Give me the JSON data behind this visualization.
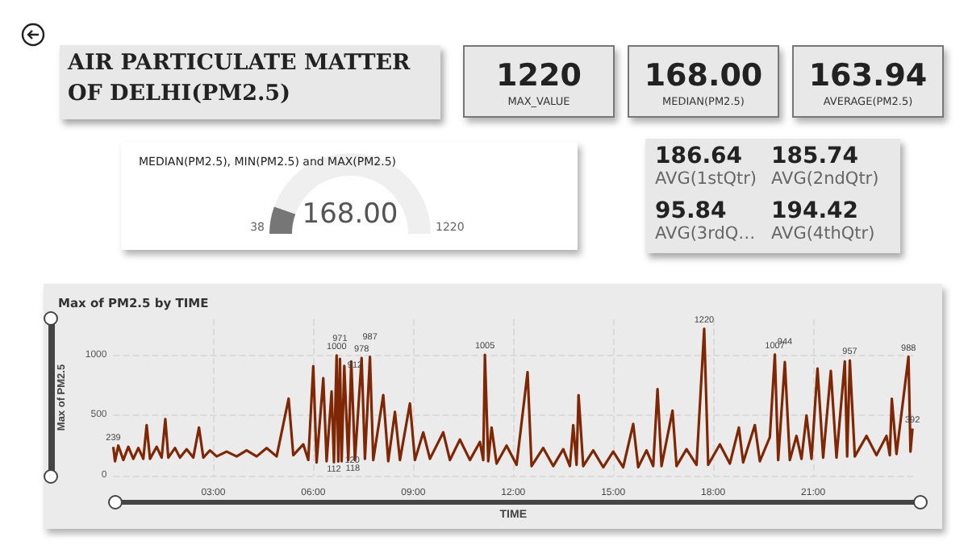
{
  "chart_data": [
    {
      "type": "other",
      "title": "AIR PARTICULATE MATTER OF DELHI(PM2.5)",
      "categories": [
        "MAX_VALUE",
        "MEDIAN(PM2.5)",
        "AVERAGE(PM2.5)"
      ],
      "values": [
        1220,
        168,
        163.94
      ],
      "value_labels": [
        "1220",
        "168.00",
        "163.94"
      ]
    },
    {
      "type": "donut",
      "title": "MEDIAN(PM2.5), MIN(PM2.5) and MAX(PM2.5)",
      "categories": [
        null,
        null
      ],
      "values": [
        11,
        89
      ],
      "colors": [
        "#767676",
        "#efefef"
      ],
      "annotations": [
        "168.00",
        "38",
        "1220"
      ]
    },
    {
      "type": "other",
      "categories": [
        "AVG(1stQtr)",
        "AVG(2ndQtr)",
        "AVG(3rdQ…",
        "AVG(4thQtr)"
      ],
      "values": [
        186.64,
        185.74,
        95.84,
        194.42
      ],
      "value_labels": [
        "186.64",
        "185.74",
        "95.84",
        "194.42"
      ]
    },
    {
      "type": "line",
      "title": "Max of PM2.5 by TIME",
      "xlabel": "TIME",
      "ylabel": "Max of PM2.5",
      "color": "#7f2704",
      "grid": true,
      "xlim": [
        0,
        24
      ],
      "xticks": [
        {
          "value": 3,
          "label": "03:00"
        },
        {
          "value": 6,
          "label": "06:00"
        },
        {
          "value": 9,
          "label": "09:00"
        },
        {
          "value": 12,
          "label": "12:00"
        },
        {
          "value": 15,
          "label": "15:00"
        },
        {
          "value": 18,
          "label": "18:00"
        },
        {
          "value": 21,
          "label": "21:00"
        }
      ],
      "ylim": [
        0,
        1300
      ],
      "yticks": [
        0,
        500,
        1000
      ],
      "x": [
        0,
        0.05,
        0.15,
        0.3,
        0.45,
        0.6,
        0.75,
        0.9,
        1.0,
        1.1,
        1.3,
        1.45,
        1.56,
        1.65,
        1.85,
        2.0,
        2.2,
        2.4,
        2.57,
        2.7,
        2.9,
        3.1,
        3.4,
        3.7,
        4.0,
        4.3,
        4.6,
        4.9,
        5.26,
        5.4,
        5.7,
        5.85,
        6.0,
        6.1,
        6.3,
        6.4,
        6.55,
        6.62,
        6.7,
        6.75,
        6.8,
        6.85,
        6.93,
        7.05,
        7.14,
        7.25,
        7.45,
        7.55,
        7.7,
        7.8,
        8.1,
        8.25,
        8.45,
        8.6,
        8.9,
        9.05,
        9.3,
        9.5,
        9.9,
        10.1,
        10.4,
        10.7,
        11.0,
        11.1,
        11.15,
        11.25,
        11.35,
        11.5,
        11.8,
        12.1,
        12.43,
        12.55,
        12.9,
        13.2,
        13.5,
        13.7,
        13.8,
        13.9,
        13.96,
        14.1,
        14.4,
        14.7,
        15.0,
        15.3,
        15.6,
        15.75,
        16.0,
        16.2,
        16.33,
        16.45,
        16.78,
        16.9,
        17.2,
        17.5,
        17.73,
        17.85,
        18.2,
        18.5,
        18.77,
        18.9,
        19.25,
        19.4,
        19.7,
        19.85,
        19.95,
        20.15,
        20.3,
        20.5,
        20.65,
        20.8,
        20.95,
        21.13,
        21.3,
        21.53,
        21.7,
        21.95,
        22.02,
        22.1,
        22.25,
        22.6,
        22.9,
        23.2,
        23.3,
        23.36,
        23.5,
        23.86,
        23.92,
        23.98
      ],
      "values": [
        239,
        120,
        250,
        130,
        240,
        140,
        230,
        140,
        420,
        140,
        240,
        150,
        470,
        150,
        230,
        150,
        220,
        150,
        400,
        150,
        210,
        160,
        200,
        160,
        210,
        160,
        230,
        160,
        640,
        170,
        260,
        130,
        910,
        110,
        810,
        120,
        700,
        112,
        1000,
        118,
        971,
        120,
        912,
        130,
        950,
        130,
        978,
        140,
        987,
        130,
        670,
        120,
        530,
        130,
        600,
        130,
        360,
        140,
        360,
        130,
        300,
        130,
        280,
        130,
        1005,
        120,
        400,
        100,
        250,
        90,
        860,
        80,
        230,
        80,
        220,
        80,
        420,
        90,
        670,
        80,
        210,
        70,
        200,
        70,
        430,
        70,
        210,
        80,
        720,
        80,
        540,
        80,
        220,
        90,
        1220,
        90,
        260,
        100,
        400,
        110,
        420,
        120,
        320,
        1007,
        130,
        944,
        130,
        330,
        140,
        500,
        140,
        890,
        150,
        870,
        150,
        950,
        160,
        957,
        160,
        330,
        170,
        330,
        170,
        640,
        180,
        988,
        200,
        392
      ],
      "value_labels": [
        "239",
        null,
        null,
        null,
        null,
        null,
        null,
        null,
        null,
        null,
        null,
        null,
        null,
        null,
        null,
        null,
        null,
        null,
        null,
        null,
        null,
        null,
        null,
        null,
        null,
        null,
        null,
        null,
        null,
        null,
        null,
        null,
        null,
        null,
        null,
        null,
        null,
        "112",
        "1000",
        "118",
        "971",
        "120",
        "912",
        null,
        null,
        null,
        "978",
        null,
        "987",
        null,
        null,
        null,
        null,
        null,
        null,
        null,
        null,
        null,
        null,
        null,
        null,
        null,
        null,
        null,
        "1005",
        null,
        null,
        null,
        null,
        null,
        null,
        null,
        null,
        null,
        null,
        null,
        null,
        null,
        null,
        null,
        null,
        null,
        null,
        null,
        null,
        null,
        null,
        null,
        null,
        null,
        null,
        null,
        null,
        null,
        "1220",
        null,
        null,
        null,
        null,
        null,
        null,
        null,
        null,
        "1007",
        null,
        "944",
        null,
        null,
        null,
        null,
        null,
        null,
        null,
        null,
        null,
        null,
        null,
        "957",
        null,
        null,
        null,
        null,
        null,
        null,
        null,
        "988",
        null,
        "392"
      ]
    }
  ]
}
